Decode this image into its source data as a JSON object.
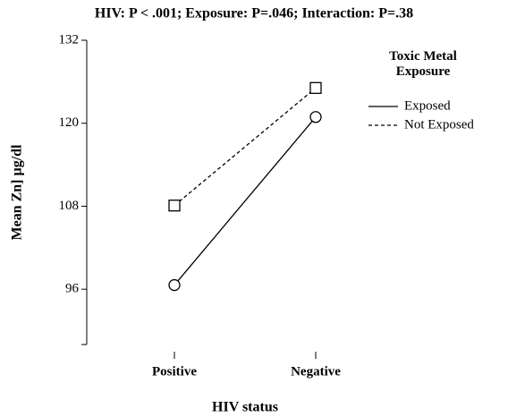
{
  "chart_data": {
    "type": "line",
    "title": "HIV: P < .001; Exposure: P=.046; Interaction: P=.38",
    "x_label": "HIV status",
    "y_label": "Mean Zn] µg/dl",
    "legend_title": "Toxic Metal Exposure",
    "categories": [
      "Positive",
      "Negative"
    ],
    "series": [
      {
        "name": "Exposed",
        "color": "#000000",
        "dash": false,
        "marker": "circle",
        "values": [
          96.6,
          120.9
        ]
      },
      {
        "name": "Not Exposed",
        "color": "#000000",
        "dash": true,
        "marker": "square",
        "values": [
          108.1,
          125.1
        ]
      }
    ],
    "ylim": [
      88,
      132
    ],
    "yticks": [
      96,
      108,
      120,
      132
    ],
    "grid": false
  }
}
